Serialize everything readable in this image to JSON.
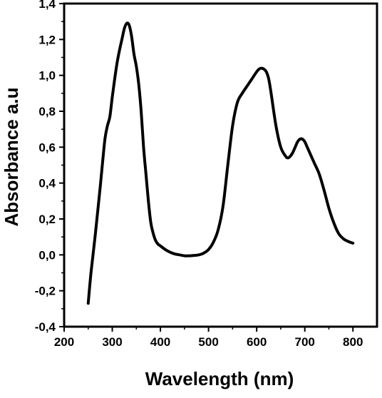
{
  "chart_data": {
    "type": "line",
    "title": "",
    "xlabel": "Wavelength (nm)",
    "ylabel": "Absorbance a.u",
    "xlim": [
      200,
      850
    ],
    "ylim": [
      -0.4,
      1.4
    ],
    "x_ticks": [
      200,
      300,
      400,
      500,
      600,
      700,
      800
    ],
    "x_tick_labels": [
      "200",
      "300",
      "400",
      "500",
      "600",
      "700",
      "800"
    ],
    "y_ticks": [
      -0.4,
      -0.2,
      0.0,
      0.2,
      0.4,
      0.6,
      0.8,
      1.0,
      1.2,
      1.4
    ],
    "y_tick_labels": [
      "-0,4",
      "-0,2",
      "0,0",
      "0,2",
      "0,4",
      "0,6",
      "0,8",
      "1,0",
      "1,2",
      "1,4"
    ],
    "grid": false,
    "legend": "none",
    "line_color": "#000000",
    "series": [
      {
        "x": [
          250,
          255,
          260,
          265,
          270,
          275,
          280,
          285,
          290,
          295,
          300,
          305,
          310,
          315,
          320,
          325,
          330,
          335,
          340,
          345,
          350,
          355,
          360,
          365,
          370,
          375,
          380,
          385,
          390,
          395,
          400,
          410,
          420,
          430,
          440,
          450,
          460,
          470,
          480,
          490,
          500,
          510,
          520,
          530,
          540,
          550,
          560,
          570,
          580,
          590,
          600,
          605,
          610,
          615,
          620,
          625,
          630,
          640,
          650,
          660,
          665,
          670,
          675,
          680,
          685,
          690,
          695,
          700,
          705,
          710,
          720,
          730,
          740,
          750,
          760,
          770,
          780,
          790,
          800
        ],
        "y": [
          -0.27,
          -0.12,
          0.0,
          0.12,
          0.25,
          0.38,
          0.52,
          0.65,
          0.72,
          0.77,
          0.88,
          0.98,
          1.07,
          1.14,
          1.2,
          1.26,
          1.29,
          1.28,
          1.22,
          1.12,
          1.05,
          0.95,
          0.8,
          0.6,
          0.45,
          0.3,
          0.18,
          0.12,
          0.08,
          0.06,
          0.05,
          0.03,
          0.015,
          0.005,
          0.0,
          -0.005,
          -0.005,
          -0.003,
          0.0,
          0.01,
          0.03,
          0.07,
          0.14,
          0.27,
          0.5,
          0.72,
          0.85,
          0.9,
          0.94,
          0.98,
          1.02,
          1.035,
          1.04,
          1.035,
          1.02,
          0.98,
          0.9,
          0.72,
          0.6,
          0.55,
          0.54,
          0.55,
          0.57,
          0.6,
          0.63,
          0.645,
          0.645,
          0.63,
          0.6,
          0.57,
          0.51,
          0.45,
          0.36,
          0.26,
          0.18,
          0.12,
          0.09,
          0.075,
          0.065
        ]
      }
    ]
  }
}
